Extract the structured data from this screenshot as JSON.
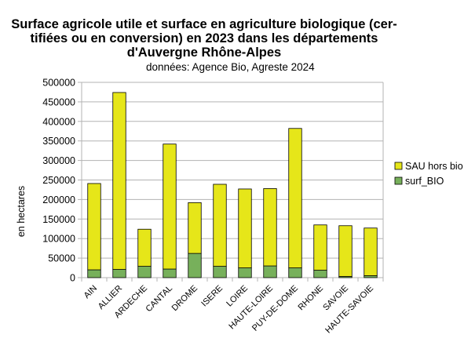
{
  "chart_data": {
    "type": "bar",
    "stacked": true,
    "title_lines": [
      "Surface agricole utile et surface en agriculture biologique (cer-",
      "tifiées ou en conversion) en 2023 dans les départements",
      "d'Auvergne Rhône-Alpes"
    ],
    "subtitle": "données: Agence Bio, Agreste 2024",
    "ylabel": "en hectares",
    "xlabel": "",
    "ylim": [
      0,
      500000
    ],
    "yticks": [
      0,
      50000,
      100000,
      150000,
      200000,
      250000,
      300000,
      350000,
      400000,
      450000,
      500000
    ],
    "grid": true,
    "legend_position": "right",
    "categories": [
      "AIN",
      "ALLIER",
      "ARDECHE",
      "CANTAL",
      "DROME",
      "ISERE",
      "LOIRE",
      "HAUTE-LOIRE",
      "PUY-DE-DOME",
      "RHONE",
      "SAVOIE",
      "HAUTE-SAVOIE"
    ],
    "series": [
      {
        "name": "surf_BIO",
        "color": "#77b05b",
        "values": [
          20000,
          21000,
          29000,
          22000,
          62000,
          29000,
          25000,
          30000,
          25000,
          19000,
          3000,
          5000
        ]
      },
      {
        "name": "SAU hors bio",
        "color": "#e6e619",
        "values": [
          221000,
          453000,
          95000,
          320000,
          130000,
          210000,
          202000,
          198000,
          357000,
          116000,
          130000,
          122000
        ]
      }
    ],
    "legend_order": [
      "SAU hors bio",
      "surf_BIO"
    ]
  }
}
